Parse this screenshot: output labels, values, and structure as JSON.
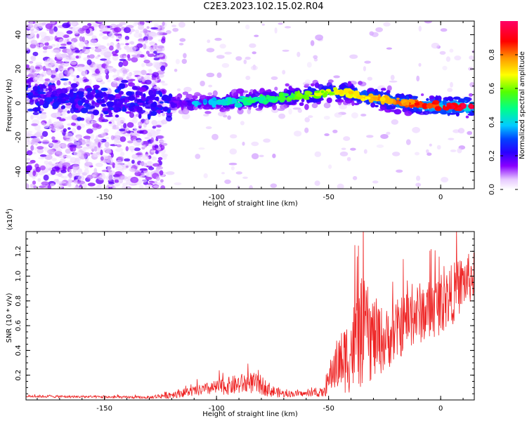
{
  "figure_title": "C2E3.2023.102.15.02.R04",
  "chart_data": [
    {
      "type": "heatmap",
      "name": "spectrogram",
      "xlabel": "Height of straight line (km)",
      "ylabel": "Frequency (Hz)",
      "xlim": [
        -185,
        15
      ],
      "ylim": [
        -50,
        48
      ],
      "x_ticks": [
        -150,
        -100,
        -50,
        0
      ],
      "y_ticks": [
        -40,
        -20,
        0,
        20,
        40
      ],
      "colorbar": {
        "label": "Normalized spectral amplitude",
        "range": [
          0.0,
          1.0
        ],
        "ticks": [
          "0.0",
          "0.2",
          "0.4",
          "0.6",
          "0.8"
        ]
      },
      "ridge_center_frequency": {
        "x": [
          -185,
          -150,
          -120,
          -100,
          -80,
          -60,
          -45,
          -30,
          -15,
          0,
          15
        ],
        "y": [
          3,
          2,
          0,
          1,
          2,
          5,
          7,
          3,
          0,
          -2,
          -2
        ]
      },
      "grid": false
    },
    {
      "type": "line",
      "name": "snr",
      "xlabel": "Height of straight line (km)",
      "ylabel": "SNR (10 * v/v)",
      "y_multiplier": "(x10",
      "y_multiplier_exp": "4",
      "y_multiplier_close": ")",
      "xlim": [
        -185,
        15
      ],
      "ylim": [
        0,
        1.36
      ],
      "x_ticks": [
        -150,
        -100,
        -50,
        0
      ],
      "y_ticks": [
        "0.2",
        "0.4",
        "0.6",
        "0.8",
        "1.0",
        "1.2"
      ],
      "color": "#ee2222",
      "envelope": {
        "x": [
          -185,
          -130,
          -122,
          -110,
          -100,
          -92,
          -85,
          -80,
          -75,
          -70,
          -60,
          -52,
          -48,
          -42,
          -38,
          -35,
          -30,
          -25,
          -20,
          -15,
          -10,
          -5,
          0,
          5,
          10,
          15
        ],
        "base": [
          0.03,
          0.02,
          0.04,
          0.07,
          0.1,
          0.12,
          0.14,
          0.12,
          0.07,
          0.05,
          0.05,
          0.06,
          0.25,
          0.35,
          0.45,
          0.55,
          0.5,
          0.48,
          0.55,
          0.65,
          0.7,
          0.72,
          0.78,
          0.85,
          0.95,
          1.0
        ],
        "amplitude": [
          0.01,
          0.01,
          0.03,
          0.04,
          0.06,
          0.08,
          0.09,
          0.08,
          0.05,
          0.03,
          0.02,
          0.04,
          0.18,
          0.3,
          0.4,
          0.45,
          0.35,
          0.25,
          0.25,
          0.25,
          0.25,
          0.25,
          0.25,
          0.25,
          0.22,
          0.2
        ]
      },
      "grid": false
    }
  ]
}
